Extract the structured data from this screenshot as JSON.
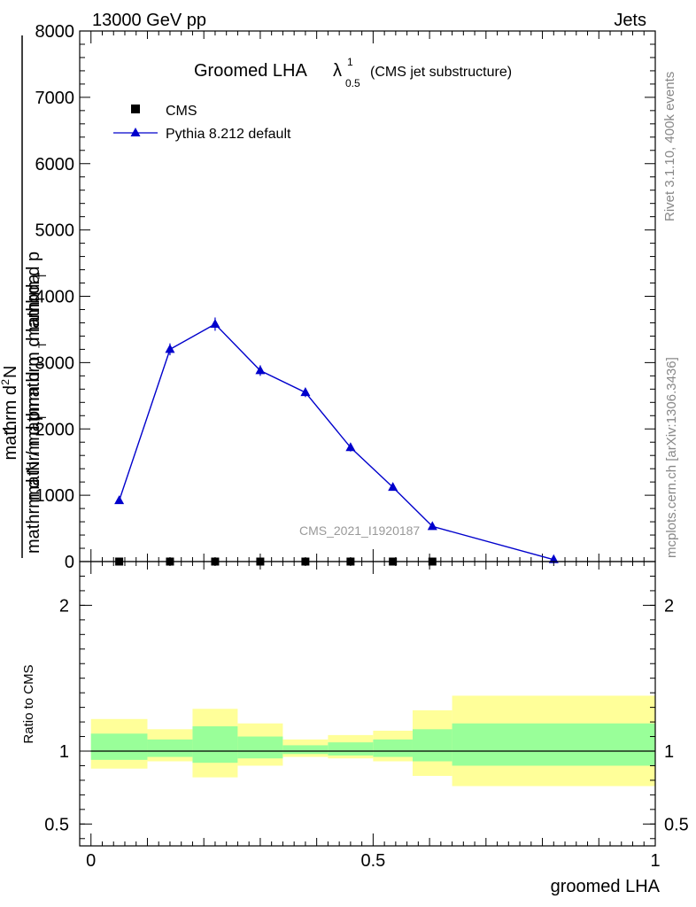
{
  "header": {
    "energy_label": "13000 GeV pp",
    "process_label": "Jets"
  },
  "side_text": {
    "rivet": "Rivet 3.1.10,  400k events",
    "mcplots": "mcplots.cern.ch [arXiv:1306.3436]"
  },
  "watermark": "CMS_2021_I1920187",
  "chart_data": [
    {
      "type": "line",
      "panel": "main",
      "title": {
        "main": "Groomed LHA",
        "lambda": "λ",
        "superscript": "1",
        "subscript": "0.5",
        "note": "(CMS jet substructure)"
      },
      "ylabel": {
        "line1_numerator": "mathrm d",
        "line1_superscript": "2",
        "line1_rest": "N",
        "line1_denominator": "mathrm d p",
        "line1_denominator_sub": "T",
        "line1_denominator_rest": " mathrm d lambda",
        "line2_prefix": "1",
        "line2_text": "mathrm d N / mathrm d p",
        "line2_sub": "T",
        "line2_rest": " mathrm d p",
        "line2_sub2": "T"
      },
      "xlim": [
        0,
        1
      ],
      "ylim": [
        0,
        8000
      ],
      "yticks": [
        {
          "value": 0,
          "label": "0"
        },
        {
          "value": 1000,
          "label": "1000"
        },
        {
          "value": 2000,
          "label": "2000"
        },
        {
          "value": 3000,
          "label": "3000"
        },
        {
          "value": 4000,
          "label": "4000"
        },
        {
          "value": 5000,
          "label": "5000"
        },
        {
          "value": 6000,
          "label": "6000"
        },
        {
          "value": 7000,
          "label": "7000"
        },
        {
          "value": 8000,
          "label": "8000"
        }
      ],
      "legend": {
        "position": "top-left",
        "entries": [
          {
            "label": "CMS",
            "marker": "square",
            "color": "#000000"
          },
          {
            "label": "Pythia 8.212 default",
            "marker": "triangle",
            "color": "#0000cc"
          }
        ]
      },
      "series": [
        {
          "name": "CMS",
          "color": "#000000",
          "x": [
            0.05,
            0.14,
            0.22,
            0.3,
            0.38,
            0.46,
            0.535,
            0.605
          ],
          "y": [
            0,
            0,
            0,
            0,
            0,
            0,
            0,
            0
          ]
        },
        {
          "name": "Pythia 8.212 default",
          "color": "#0000cc",
          "x": [
            0.05,
            0.14,
            0.22,
            0.3,
            0.38,
            0.46,
            0.535,
            0.605,
            0.82
          ],
          "y": [
            920,
            3200,
            3580,
            2880,
            2550,
            1720,
            1120,
            530,
            30
          ],
          "yerr": [
            30,
            90,
            100,
            80,
            70,
            60,
            50,
            30,
            10
          ]
        }
      ]
    },
    {
      "type": "area",
      "panel": "ratio",
      "ylabel": "Ratio to CMS",
      "xlabel": "groomed LHA",
      "xlim": [
        -0.02,
        1.0
      ],
      "ylim": [
        0.35,
        2.3
      ],
      "xticks": [
        {
          "value": 0,
          "label": "0"
        },
        {
          "value": 0.5,
          "label": "0.5"
        },
        {
          "value": 1,
          "label": "1"
        }
      ],
      "yticks": [
        {
          "value": 0.5,
          "label": "0.5"
        },
        {
          "value": 1,
          "label": "1"
        },
        {
          "value": 2,
          "label": "2"
        }
      ],
      "reference_line": 1,
      "band_colors": {
        "inner": "#99ff99",
        "outer": "#ffff99"
      },
      "bins": [
        {
          "lo": 0.0,
          "hi": 0.1,
          "inner": [
            0.94,
            1.12
          ],
          "outer": [
            0.88,
            1.22
          ]
        },
        {
          "lo": 0.1,
          "hi": 0.18,
          "inner": [
            0.96,
            1.08
          ],
          "outer": [
            0.93,
            1.15
          ]
        },
        {
          "lo": 0.18,
          "hi": 0.26,
          "inner": [
            0.92,
            1.17
          ],
          "outer": [
            0.82,
            1.29
          ]
        },
        {
          "lo": 0.26,
          "hi": 0.34,
          "inner": [
            0.95,
            1.1
          ],
          "outer": [
            0.9,
            1.19
          ]
        },
        {
          "lo": 0.34,
          "hi": 0.42,
          "inner": [
            0.98,
            1.04
          ],
          "outer": [
            0.96,
            1.08
          ]
        },
        {
          "lo": 0.42,
          "hi": 0.5,
          "inner": [
            0.97,
            1.06
          ],
          "outer": [
            0.95,
            1.11
          ]
        },
        {
          "lo": 0.5,
          "hi": 0.57,
          "inner": [
            0.96,
            1.08
          ],
          "outer": [
            0.93,
            1.14
          ]
        },
        {
          "lo": 0.57,
          "hi": 0.64,
          "inner": [
            0.93,
            1.15
          ],
          "outer": [
            0.83,
            1.28
          ]
        },
        {
          "lo": 0.64,
          "hi": 1.0,
          "inner": [
            0.9,
            1.19
          ],
          "outer": [
            0.76,
            1.38
          ]
        }
      ]
    }
  ]
}
